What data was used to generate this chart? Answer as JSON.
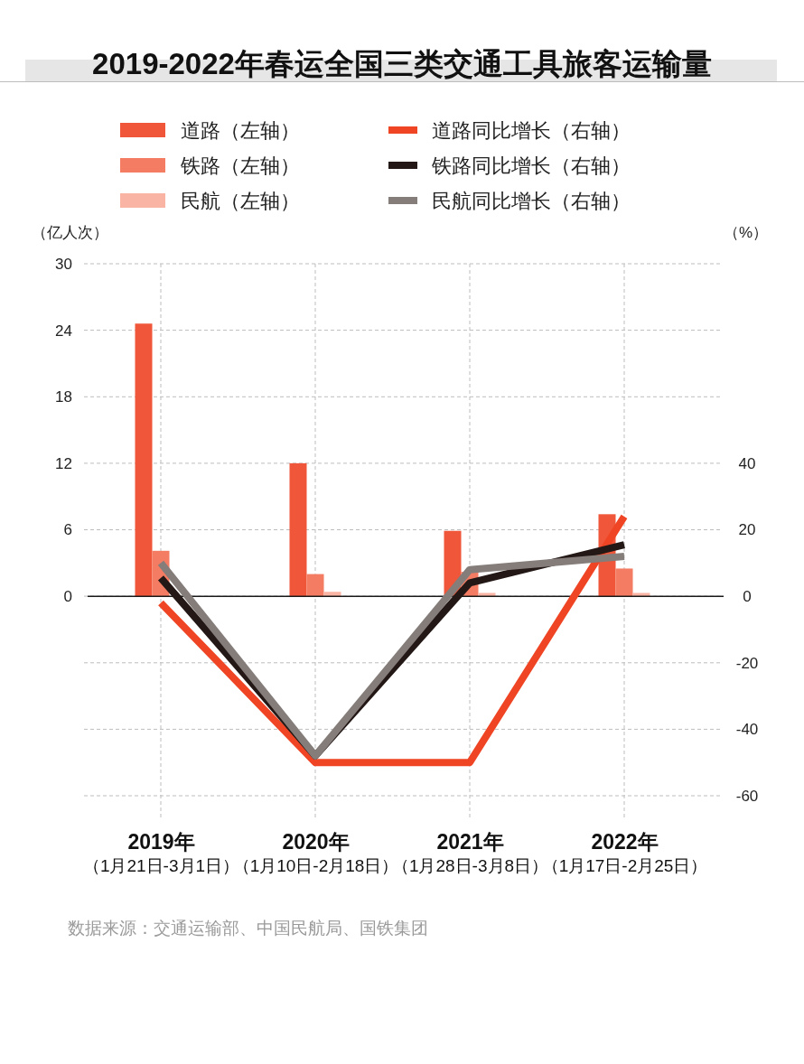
{
  "chart_data": {
    "type": "bar",
    "title": "2019-2022年春运全国三类交通工具旅客运输量",
    "ylabel": "（亿人次）",
    "y2label": "（%）",
    "categories": [
      "2019年（1月21日-3月1日）",
      "2020年（1月10日-2月18日）",
      "2021年（1月28日-3月8日）",
      "2022年（1月17日-2月25日）"
    ],
    "series": [
      {
        "name": "道路（左轴）",
        "color": "#f0573a",
        "values": [
          24.6,
          12.0,
          5.9,
          7.4
        ]
      },
      {
        "name": "铁路（左轴）",
        "color": "#f47c63",
        "values": [
          4.1,
          2.0,
          2.2,
          2.5
        ]
      },
      {
        "name": "民航（左轴）",
        "color": "#f9b4a3",
        "values": [
          null,
          0.4,
          0.3,
          0.3
        ]
      },
      {
        "name": "道路同比增长（右轴）",
        "type": "line",
        "axis": "y2",
        "color": "#ef4524",
        "values": [
          -2,
          -50,
          -50,
          24
        ]
      },
      {
        "name": "铁路同比增长（右轴）",
        "type": "line",
        "axis": "y2",
        "color": "#231815",
        "values": [
          5.5,
          -48,
          4,
          15.5
        ]
      },
      {
        "name": "民航同比增长（右轴）",
        "type": "line",
        "axis": "y2",
        "color": "#857d7a",
        "values": [
          10,
          -48,
          8,
          12
        ]
      }
    ],
    "ylim": [
      -18,
      30
    ],
    "yticks": [
      {
        "value": -18,
        "label": null
      },
      {
        "value": -12,
        "label": null
      },
      {
        "value": -6,
        "label": null
      },
      0,
      6,
      12,
      18,
      24,
      30
    ],
    "y2lim": [
      -60,
      100
    ],
    "y2ticks": [
      -60,
      -40,
      -20,
      0,
      20,
      40
    ],
    "grid": true,
    "legend": "top",
    "annotations": [
      "数据来源：交通运输部、中国民航局、国铁集团"
    ]
  }
}
